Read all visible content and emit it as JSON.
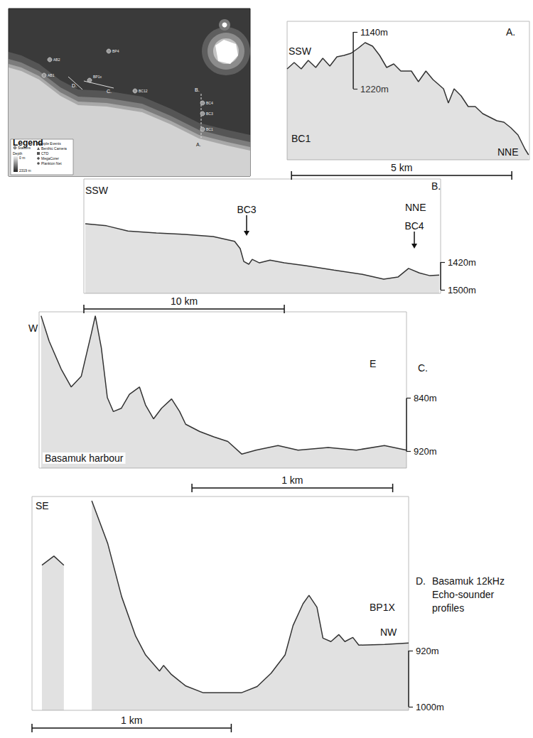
{
  "map": {
    "legend": {
      "title": "Legend",
      "stations": "Stations",
      "sample_events": "Sample Events",
      "depth": "Depth",
      "depth_min": "0 m",
      "depth_max": "2319 m",
      "events": [
        "Benthic Camera",
        "CTD",
        "MegaCorer",
        "Plankton Net"
      ]
    },
    "stations": [
      "AB2",
      "AB1",
      "BP4",
      "BP1x",
      "BC12",
      "BC4",
      "BC3",
      "BC1"
    ],
    "profile_letters": [
      "D.",
      "C.",
      "B.",
      "A."
    ]
  },
  "caption": "Basamuk 12kHz Echo-sounder profiles",
  "chart_data": [
    {
      "type": "line",
      "label": "A.",
      "directions": [
        "SSW",
        "NNE"
      ],
      "stations": [
        "BC1"
      ],
      "annotations": [],
      "color": "#333333",
      "x": [
        0,
        0.16,
        0.32,
        0.48,
        0.65,
        0.81,
        0.97,
        1.13,
        1.29,
        1.45,
        1.61,
        1.77,
        1.94,
        2.1,
        2.26,
        2.42,
        2.58,
        2.82,
        2.98,
        3.15,
        3.31,
        3.55,
        3.66,
        3.79,
        3.95,
        4.11,
        4.27,
        4.44,
        4.6,
        4.76,
        4.92,
        5.08,
        5.24,
        5.4,
        5.48
      ],
      "values": [
        1192,
        1183,
        1192,
        1180,
        1190,
        1177,
        1188,
        1175,
        1173,
        1170,
        1163,
        1155,
        1160,
        1173,
        1190,
        1185,
        1195,
        1195,
        1210,
        1195,
        1207,
        1220,
        1240,
        1220,
        1230,
        1245,
        1245,
        1255,
        1260,
        1265,
        1267,
        1275,
        1285,
        1305,
        1313
      ],
      "xlim": [
        0,
        5.5
      ],
      "ylim": [
        1125,
        1320
      ],
      "yticks": [
        {
          "value": 1140,
          "label": "1140m"
        },
        {
          "value": 1220,
          "label": "1220m"
        }
      ],
      "scale_bar": {
        "value": 5,
        "label": "5 km"
      },
      "tick_labels": "y",
      "grid": false
    },
    {
      "type": "line",
      "label": "B.",
      "directions": [
        "SSW",
        "NNE"
      ],
      "stations": [
        "BC3",
        "BC4"
      ],
      "annotations": [],
      "color": "#333333",
      "x": [
        0.07,
        1.13,
        2.2,
        3.62,
        5.04,
        6.45,
        7.52,
        7.8,
        7.98,
        8.23,
        8.4,
        8.76,
        9.29,
        10.0,
        11.06,
        12.48,
        13.9,
        14.96,
        15.67,
        16.2,
        16.74,
        17.27,
        17.73
      ],
      "values": [
        1309,
        1315,
        1330,
        1336,
        1340,
        1346,
        1360,
        1381,
        1418,
        1426,
        1412,
        1422,
        1414,
        1422,
        1430,
        1443,
        1455,
        1469,
        1463,
        1438,
        1451,
        1459,
        1457
      ],
      "xlim": [
        0,
        17.8
      ],
      "ylim": [
        1180,
        1510
      ],
      "yticks": [
        {
          "value": 1420,
          "label": "1420m"
        },
        {
          "value": 1500,
          "label": "1500m"
        }
      ],
      "scale_bar": {
        "value": 10,
        "label": "10 km"
      },
      "tick_labels": "y",
      "grid": false
    },
    {
      "type": "line",
      "label": "C.",
      "directions": [
        "W",
        "E"
      ],
      "stations": [],
      "annotations": [
        "Basamuk harbour"
      ],
      "color": "#333333",
      "x": [
        0.01,
        0.05,
        0.11,
        0.16,
        0.21,
        0.26,
        0.28,
        0.31,
        0.34,
        0.37,
        0.41,
        0.45,
        0.5,
        0.53,
        0.57,
        0.61,
        0.66,
        0.7,
        0.73,
        0.8,
        0.87,
        0.94,
        1.01,
        1.08,
        1.19,
        1.29,
        1.44,
        1.58,
        1.72,
        1.83
      ],
      "values": [
        716,
        754,
        796,
        823,
        807,
        743,
        716,
        764,
        839,
        860,
        855,
        834,
        823,
        850,
        871,
        855,
        841,
        860,
        879,
        890,
        898,
        905,
        924,
        918,
        911,
        918,
        914,
        918,
        911,
        918
      ],
      "xlim": [
        0,
        1.83
      ],
      "ylim": [
        710,
        945
      ],
      "yticks": [
        {
          "value": 840,
          "label": "840m"
        },
        {
          "value": 920,
          "label": "920m"
        }
      ],
      "scale_bar": {
        "value": 1,
        "label": "1 km"
      },
      "tick_labels": "y",
      "grid": false
    },
    {
      "type": "line",
      "label": "D.",
      "directions": [
        "SE",
        "NW"
      ],
      "stations": [
        "BP1X"
      ],
      "annotations": [],
      "color": "#333333",
      "x": [
        0.05,
        0.11,
        0.16,
        0.2,
        0.3,
        0.38,
        0.45,
        0.52,
        0.57,
        0.64,
        0.66,
        0.7,
        0.77,
        0.86,
        1.05,
        1.13,
        1.2,
        1.27,
        1.31,
        1.36,
        1.39,
        1.43,
        1.46,
        1.5,
        1.54,
        1.57,
        1.61,
        1.64,
        1.77,
        1.89
      ],
      "values": [
        798,
        785,
        798,
        null,
        706,
        767,
        843,
        899,
        926,
        949,
        941,
        954,
        970,
        980,
        980,
        971,
        952,
        926,
        884,
        853,
        841,
        858,
        902,
        907,
        897,
        907,
        901,
        912,
        911,
        909
      ],
      "xlim": [
        0,
        1.89
      ],
      "ylim": [
        700,
        1005
      ],
      "yticks": [
        {
          "value": 920,
          "label": "920m"
        },
        {
          "value": 1000,
          "label": "1000m"
        }
      ],
      "scale_bar": {
        "value": 1,
        "label": "1 km"
      },
      "tick_labels": "y",
      "grid": false
    }
  ]
}
